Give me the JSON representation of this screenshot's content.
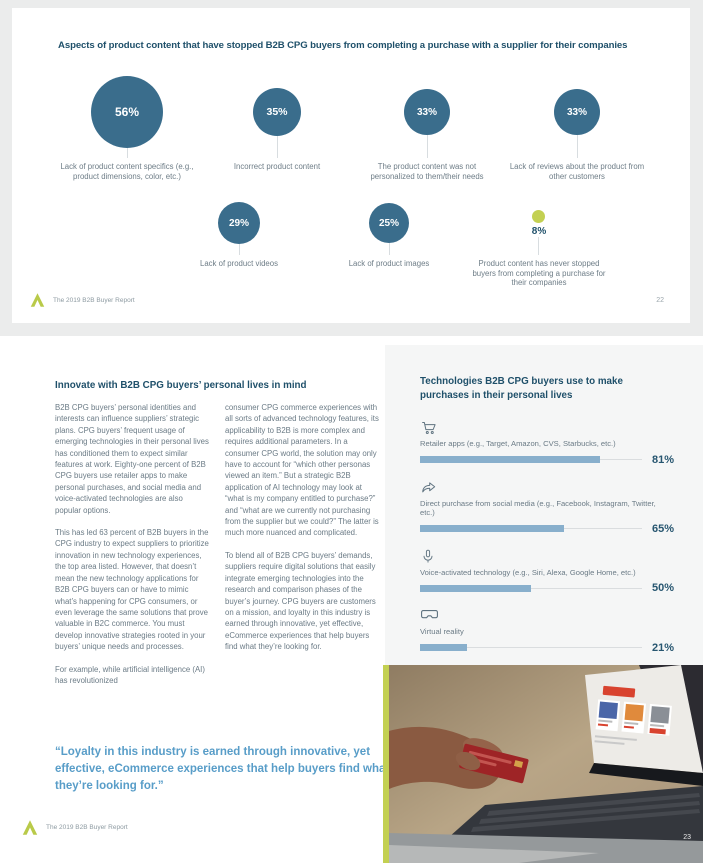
{
  "colors": {
    "background_gray": "#ebecec",
    "page_white": "#ffffff",
    "heading_navy": "#1f506a",
    "bubble_teal": "#3a6d8c",
    "accent_green": "#c3d052",
    "body_gray": "#6b7b86",
    "bar_blue": "#88afcc",
    "quote_blue": "#589dc8"
  },
  "page1": {
    "title": "Aspects of product content that have stopped B2B CPG buyers from completing a purchase with a supplier for their companies",
    "bubbles": [
      {
        "pct": "56%",
        "value": 56,
        "d": 72,
        "fs": 12,
        "label": "Lack of product content specifics (e.g., product dimensions, color, etc.)"
      },
      {
        "pct": "35%",
        "value": 35,
        "d": 48,
        "fs": 10.5,
        "label": "Incorrect product content"
      },
      {
        "pct": "33%",
        "value": 33,
        "d": 46,
        "fs": 10,
        "label": "The product content was not personalized to them/their needs"
      },
      {
        "pct": "33%",
        "value": 33,
        "d": 46,
        "fs": 10,
        "label": "Lack of reviews about the product from other customers"
      },
      {
        "pct": "29%",
        "value": 29,
        "d": 42,
        "fs": 10,
        "label": "Lack of product videos"
      },
      {
        "pct": "25%",
        "value": 25,
        "d": 40,
        "fs": 10,
        "label": "Lack of product images"
      },
      {
        "pct": "8%",
        "value": 8,
        "d": 13,
        "fs": 10,
        "label": "Product content has never stopped buyers from completing a purchase for their companies"
      }
    ],
    "footer": {
      "report_title": "The 2019 B2B Buyer Report",
      "page_number": "22"
    }
  },
  "page2": {
    "heading": "Innovate with B2B CPG buyers’ personal lives in mind",
    "columns": {
      "col1": [
        "B2B CPG buyers’ personal identities and interests can influence suppliers’ strategic plans. CPG buyers’ frequent usage of emerging technologies in their personal lives has conditioned them to expect similar features at work. Eighty-one percent of B2B CPG buyers use retailer apps to make personal purchases, and social media and voice-activated technologies are also popular options.",
        "This has led 63 percent of B2B buyers in the CPG industry to expect suppliers to prioritize innovation in new technology experiences, the top area listed. However, that doesn’t mean the new technology applications for B2B CPG buyers can or have to mimic what’s happening for CPG consumers, or even leverage the same solutions that prove valuable in B2C commerce. You must develop innovative strategies rooted in your buyers’ unique needs and processes.",
        "For example, while artificial intelligence (AI) has revolutionized"
      ],
      "col2": [
        "consumer CPG commerce experiences with all sorts of advanced technology features, its applicability to B2B is more complex and requires additional parameters. In a consumer CPG world, the solution may only have to account for “which other personas viewed an item.” But a strategic B2B application of AI technology may look at “what is my company entitled to purchase?” and “what are we currently not purchasing from the supplier but we could?” The latter is much more nuanced and complicated.",
        "To blend all of B2B CPG buyers’ demands, suppliers require digital solutions that easily integrate emerging technologies into the research and comparison phases of the buyer’s journey. CPG buyers are customers on a mission, and loyalty in this industry is earned through innovative, yet effective, eCommerce experiences that help buyers find what they’re looking for."
      ]
    },
    "quote": "“Loyalty in this industry is earned through innovative, yet effective, eCommerce experiences that help buyers find what they’re looking for.”",
    "chart": {
      "title": "Technologies B2B CPG buyers use to make purchases in their personal lives",
      "items": [
        {
          "icon": "cart-icon",
          "label": "Retailer apps (e.g., Target, Amazon, CVS, Starbucks, etc.)",
          "pct": "81%",
          "value": 81
        },
        {
          "icon": "share-icon",
          "label": "Direct purchase from social media (e.g., Facebook, Instagram, Twitter, etc.)",
          "pct": "65%",
          "value": 65
        },
        {
          "icon": "microphone-icon",
          "label": "Voice-activated technology (e.g., Siri, Alexa, Google Home, etc.)",
          "pct": "50%",
          "value": 50
        },
        {
          "icon": "vr-headset-icon",
          "label": "Virtual reality",
          "pct": "21%",
          "value": 21
        }
      ]
    },
    "footer": {
      "report_title": "The 2019 B2B Buyer Report",
      "page_number": "23"
    }
  },
  "chart_data": [
    {
      "type": "bubble",
      "title": "Aspects of product content that have stopped B2B CPG buyers from completing a purchase with a supplier for their companies",
      "categories": [
        "Lack of product content specifics (e.g., product dimensions, color, etc.)",
        "Incorrect product content",
        "The product content was not personalized to them/their needs",
        "Lack of reviews about the product from other customers",
        "Lack of product videos",
        "Lack of product images",
        "Product content has never stopped buyers from completing a purchase for their companies"
      ],
      "values": [
        56,
        35,
        33,
        33,
        29,
        25,
        8
      ],
      "unit": "%",
      "bubble_color": "#3a6d8c",
      "highlight": {
        "category_index": 6,
        "color": "#c3d052"
      }
    },
    {
      "type": "bar",
      "orientation": "horizontal",
      "title": "Technologies B2B CPG buyers use to make purchases in their personal lives",
      "categories": [
        "Retailer apps (e.g., Target, Amazon, CVS, Starbucks, etc.)",
        "Direct purchase from social media (e.g., Facebook, Instagram, Twitter, etc.)",
        "Voice-activated technology (e.g., Siri, Alexa, Google Home, etc.)",
        "Virtual reality"
      ],
      "values": [
        81,
        65,
        50,
        21
      ],
      "unit": "%",
      "xlim": [
        0,
        100
      ],
      "bar_color": "#88afcc",
      "grid": false,
      "legend": false
    }
  ]
}
